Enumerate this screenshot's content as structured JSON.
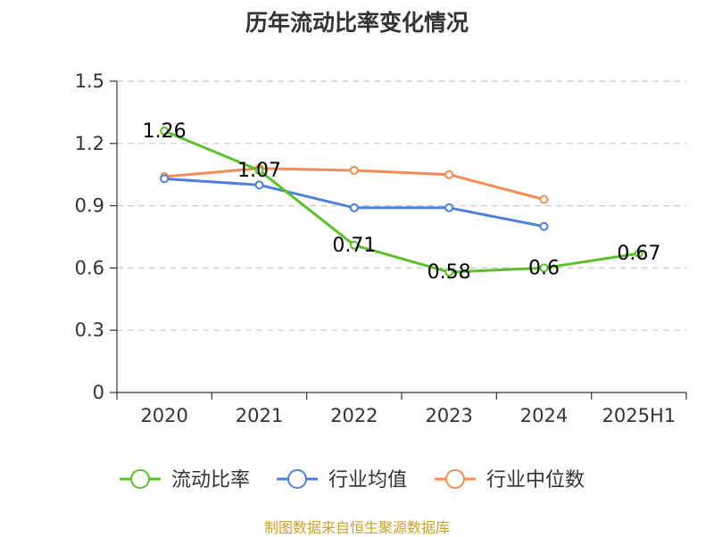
{
  "chart_data": {
    "type": "line",
    "title": "历年流动比率变化情况",
    "xlabel": "",
    "ylabel": "",
    "categories": [
      "2020",
      "2021",
      "2022",
      "2023",
      "2024",
      "2025H1"
    ],
    "ylim": [
      0,
      1.5
    ],
    "yticks": [
      "0",
      "0.3",
      "0.6",
      "0.9",
      "1.2",
      "1.5"
    ],
    "grid": true,
    "legend_position": "bottom",
    "series": [
      {
        "name": "流动比率",
        "color": "#5cc02c",
        "values": [
          1.26,
          1.07,
          0.71,
          0.58,
          0.6,
          0.67
        ],
        "labels": [
          "1.26",
          "1.07",
          "0.71",
          "0.58",
          "0.6",
          "0.67"
        ]
      },
      {
        "name": "行业均值",
        "color": "#4f7fd8",
        "values": [
          1.03,
          1.0,
          0.89,
          0.89,
          0.8,
          null
        ]
      },
      {
        "name": "行业中位数",
        "color": "#f28e55",
        "values": [
          1.04,
          1.08,
          1.07,
          1.05,
          0.93,
          null
        ]
      }
    ]
  },
  "source_note": "制图数据来自恒生聚源数据库"
}
